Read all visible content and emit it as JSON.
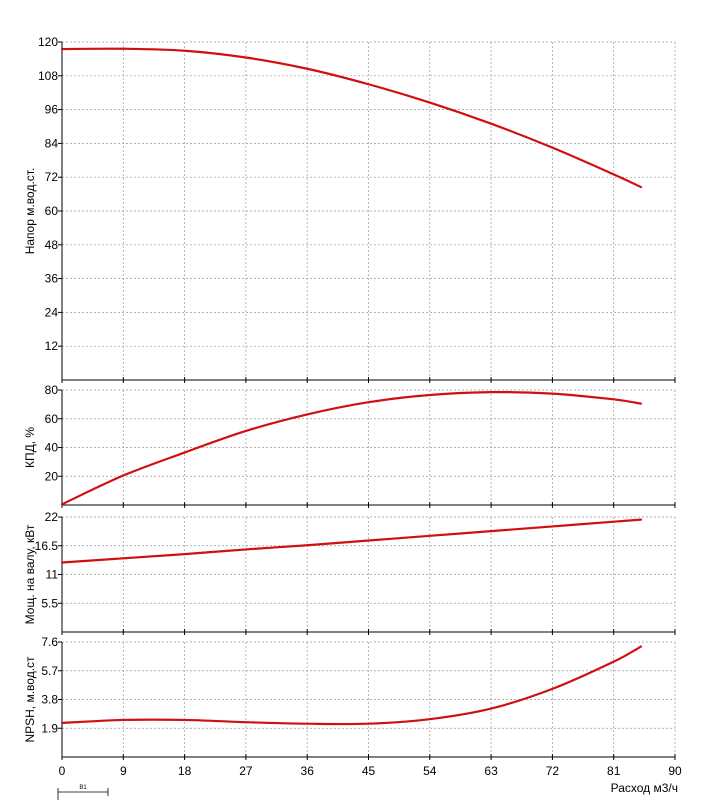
{
  "colors": {
    "curve": "#d01010",
    "grid": "#9a9a9a",
    "axis": "#000000",
    "background": "#ffffff"
  },
  "x_axis": {
    "label": "Расход м3/ч",
    "min": 0,
    "max": 90,
    "ticks": [
      "0",
      "9",
      "18",
      "27",
      "36",
      "45",
      "54",
      "63",
      "72",
      "81",
      "90"
    ]
  },
  "operating_range_label": "B1",
  "chart_data": [
    {
      "type": "line",
      "ylabel": "Напор м.вод.ст.",
      "xlim": [
        0,
        90
      ],
      "ylim": [
        0,
        120
      ],
      "yticks": [
        "12",
        "24",
        "36",
        "48",
        "60",
        "72",
        "84",
        "96",
        "108",
        "120"
      ],
      "grid": true,
      "series": [
        {
          "x": [
            0,
            9,
            18,
            27,
            36,
            45,
            54,
            63,
            72,
            81,
            85
          ],
          "values": [
            117.5,
            117.6,
            116.9,
            114.5,
            110.5,
            105.0,
            98.5,
            91.0,
            82.5,
            73.0,
            68.5
          ]
        }
      ]
    },
    {
      "type": "line",
      "ylabel": "КПД, %",
      "xlim": [
        0,
        90
      ],
      "ylim": [
        0,
        80
      ],
      "yticks": [
        "20",
        "40",
        "60",
        "80"
      ],
      "grid": true,
      "series": [
        {
          "x": [
            0,
            9,
            18,
            27,
            36,
            45,
            54,
            63,
            72,
            81,
            85
          ],
          "values": [
            0.5,
            20.5,
            36.5,
            51.5,
            63.0,
            71.5,
            76.5,
            78.5,
            77.5,
            73.5,
            70.5
          ]
        }
      ]
    },
    {
      "type": "line",
      "ylabel": "Мощ. на валу, кВт",
      "xlim": [
        0,
        90
      ],
      "ylim": [
        0,
        22
      ],
      "yticks": [
        "5.5",
        "11",
        "16.5",
        "22"
      ],
      "grid": true,
      "series": [
        {
          "x": [
            0,
            9,
            18,
            27,
            36,
            45,
            54,
            63,
            72,
            81,
            85
          ],
          "values": [
            13.3,
            14.1,
            14.9,
            15.8,
            16.6,
            17.5,
            18.4,
            19.3,
            20.2,
            21.1,
            21.5
          ]
        }
      ]
    },
    {
      "type": "line",
      "ylabel": "NPSH, м.вод.ст",
      "xlim": [
        0,
        90
      ],
      "ylim": [
        0,
        7.6
      ],
      "yticks": [
        "1.9",
        "3.8",
        "5.7",
        "7.6"
      ],
      "grid": true,
      "series": [
        {
          "x": [
            0,
            9,
            18,
            27,
            36,
            45,
            54,
            63,
            72,
            81,
            85
          ],
          "values": [
            2.25,
            2.45,
            2.45,
            2.3,
            2.2,
            2.2,
            2.5,
            3.2,
            4.5,
            6.3,
            7.3
          ]
        }
      ]
    }
  ]
}
